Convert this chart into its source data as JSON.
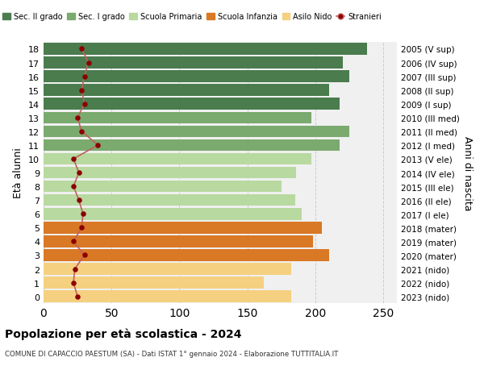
{
  "ages": [
    18,
    17,
    16,
    15,
    14,
    13,
    12,
    11,
    10,
    9,
    8,
    7,
    6,
    5,
    4,
    3,
    2,
    1,
    0
  ],
  "anni_nascita": [
    "2005 (V sup)",
    "2006 (IV sup)",
    "2007 (III sup)",
    "2008 (II sup)",
    "2009 (I sup)",
    "2010 (III med)",
    "2011 (II med)",
    "2012 (I med)",
    "2013 (V ele)",
    "2014 (IV ele)",
    "2015 (III ele)",
    "2016 (II ele)",
    "2017 (I ele)",
    "2018 (mater)",
    "2019 (mater)",
    "2020 (mater)",
    "2021 (nido)",
    "2022 (nido)",
    "2023 (nido)"
  ],
  "bar_values": [
    238,
    220,
    225,
    210,
    218,
    197,
    225,
    218,
    197,
    186,
    175,
    185,
    190,
    205,
    198,
    210,
    182,
    162,
    182
  ],
  "stranieri_values": [
    28,
    33,
    30,
    28,
    30,
    25,
    28,
    40,
    22,
    26,
    22,
    26,
    29,
    28,
    22,
    30,
    23,
    22,
    25
  ],
  "bar_colors": {
    "sec2": "#4a7c4e",
    "sec1": "#7aaa6e",
    "primaria": "#b8d9a0",
    "infanzia": "#d97825",
    "nido": "#f5d080"
  },
  "category_ranges": {
    "sec2": [
      14,
      18
    ],
    "sec1": [
      11,
      13
    ],
    "primaria": [
      6,
      10
    ],
    "infanzia": [
      3,
      5
    ],
    "nido": [
      0,
      2
    ]
  },
  "stranieri_color": "#8b0000",
  "stranieri_line_color": "#c06060",
  "bg_color": "#f0f0f0",
  "grid_color": "#cccccc",
  "title": "Popolazione per età scolastica - 2024",
  "subtitle": "COMUNE DI CAPACCIO PAESTUM (SA) - Dati ISTAT 1° gennaio 2024 - Elaborazione TUTTITALIA.IT",
  "ylabel_left": "Età alunni",
  "ylabel_right": "Anni di nascita",
  "xlim": [
    0,
    260
  ],
  "legend_labels": [
    "Sec. II grado",
    "Sec. I grado",
    "Scuola Primaria",
    "Scuola Infanzia",
    "Asilo Nido",
    "Stranieri"
  ]
}
